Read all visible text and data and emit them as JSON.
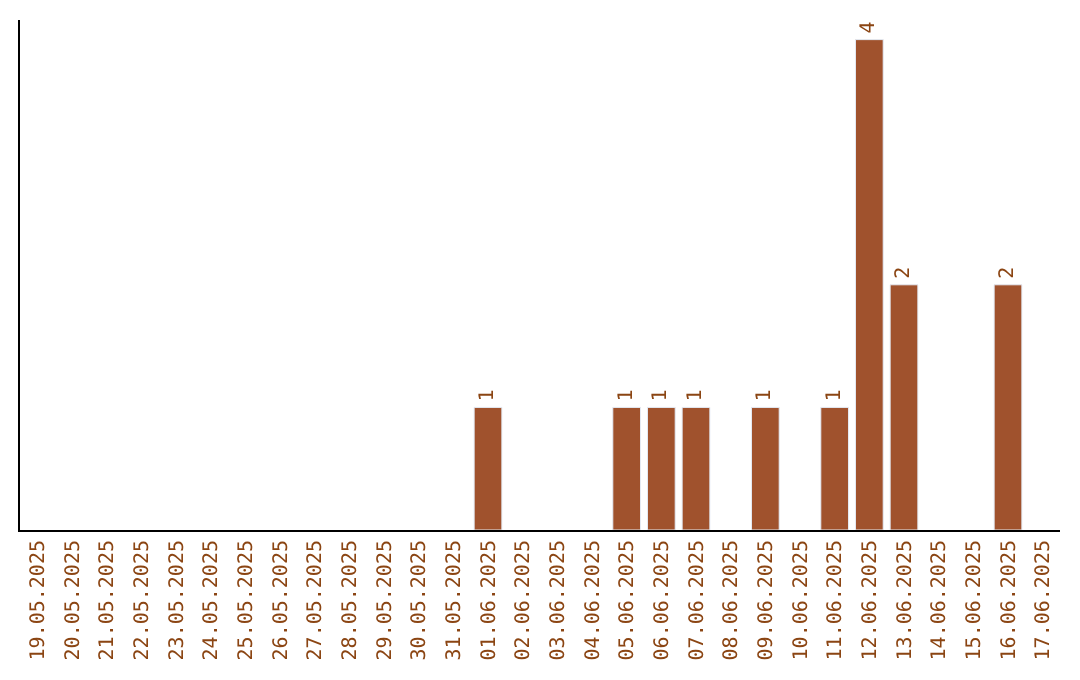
{
  "chart_data": {
    "type": "bar",
    "categories": [
      "19.05.2025",
      "20.05.2025",
      "21.05.2025",
      "22.05.2025",
      "23.05.2025",
      "24.05.2025",
      "25.05.2025",
      "26.05.2025",
      "27.05.2025",
      "28.05.2025",
      "29.05.2025",
      "30.05.2025",
      "31.05.2025",
      "01.06.2025",
      "02.06.2025",
      "03.06.2025",
      "04.06.2025",
      "05.06.2025",
      "06.06.2025",
      "07.06.2025",
      "08.06.2025",
      "09.06.2025",
      "10.06.2025",
      "11.06.2025",
      "12.06.2025",
      "13.06.2025",
      "14.06.2025",
      "15.06.2025",
      "16.06.2025",
      "17.06.2025"
    ],
    "values": [
      null,
      null,
      null,
      null,
      null,
      null,
      null,
      null,
      null,
      null,
      null,
      null,
      null,
      1,
      null,
      null,
      null,
      1,
      1,
      1,
      null,
      1,
      null,
      1,
      4,
      2,
      null,
      null,
      2,
      null
    ],
    "value_labels": [
      null,
      null,
      null,
      null,
      null,
      null,
      null,
      null,
      null,
      null,
      null,
      null,
      null,
      "1",
      null,
      null,
      null,
      "1",
      "1",
      "1",
      null,
      "1",
      null,
      "1",
      "4",
      "2",
      null,
      null,
      "2",
      null
    ],
    "color": "#a0522d",
    "ylim": [
      0,
      4.16
    ],
    "tick_labels": "x",
    "legend": false
  }
}
